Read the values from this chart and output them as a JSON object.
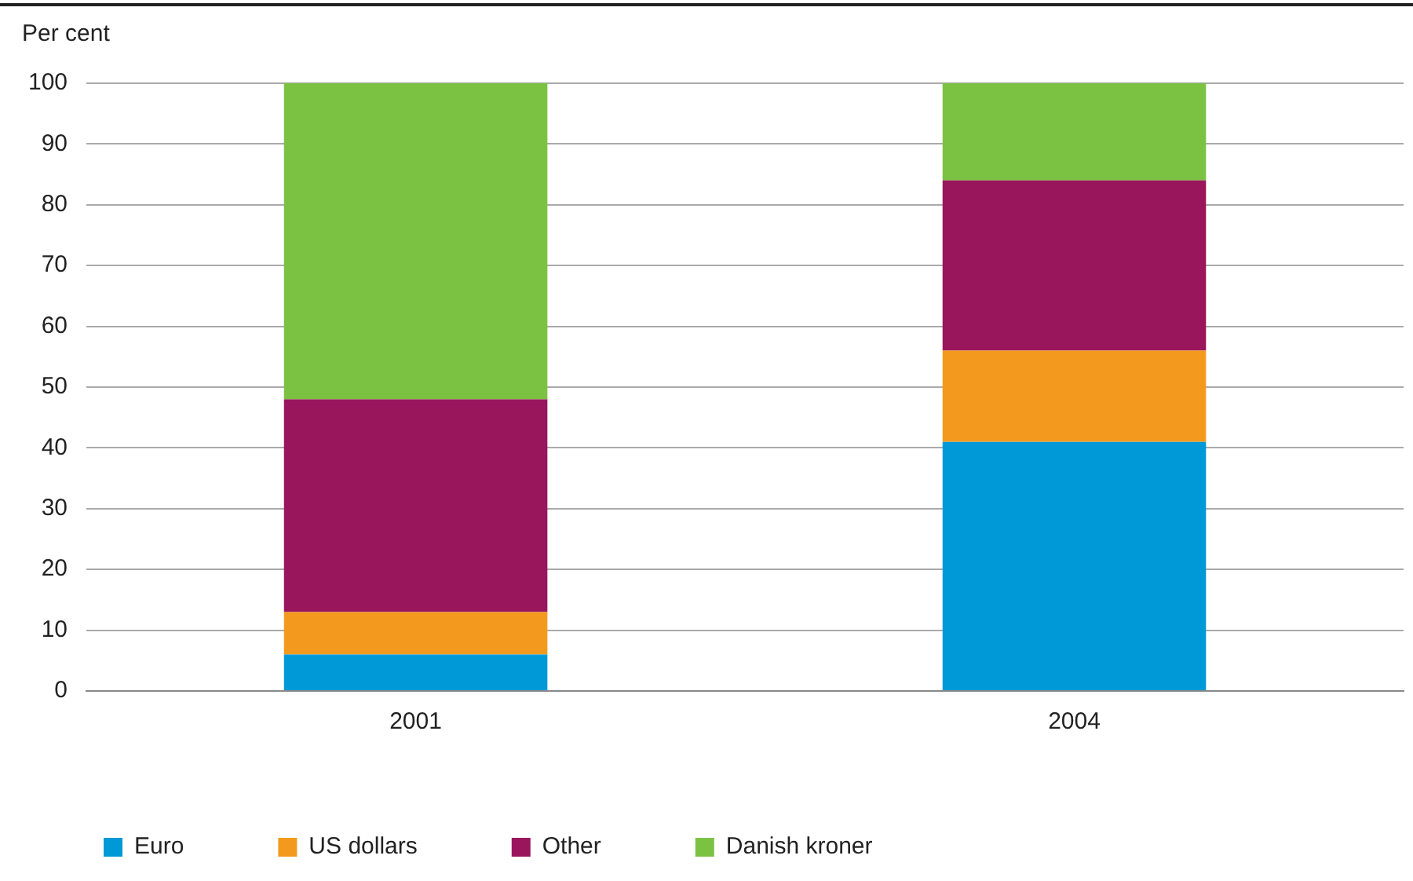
{
  "chart_data": {
    "type": "bar",
    "ylabel": "Per cent",
    "categories": [
      "2001",
      "2004"
    ],
    "stacked": true,
    "series": [
      {
        "name": "Euro",
        "color": "#0099d8",
        "values": [
          6,
          41
        ]
      },
      {
        "name": "US dollars",
        "color": "#f39a1e",
        "values": [
          7,
          15
        ]
      },
      {
        "name": "Other",
        "color": "#99165c",
        "values": [
          35,
          28
        ]
      },
      {
        "name": "Danish kroner",
        "color": "#7cc242",
        "values": [
          52,
          16
        ]
      }
    ],
    "ylim": [
      0,
      100
    ],
    "yticks": [
      0,
      10,
      20,
      30,
      40,
      50,
      60,
      70,
      80,
      90,
      100
    ],
    "grid": "y",
    "legend": "bottom"
  }
}
